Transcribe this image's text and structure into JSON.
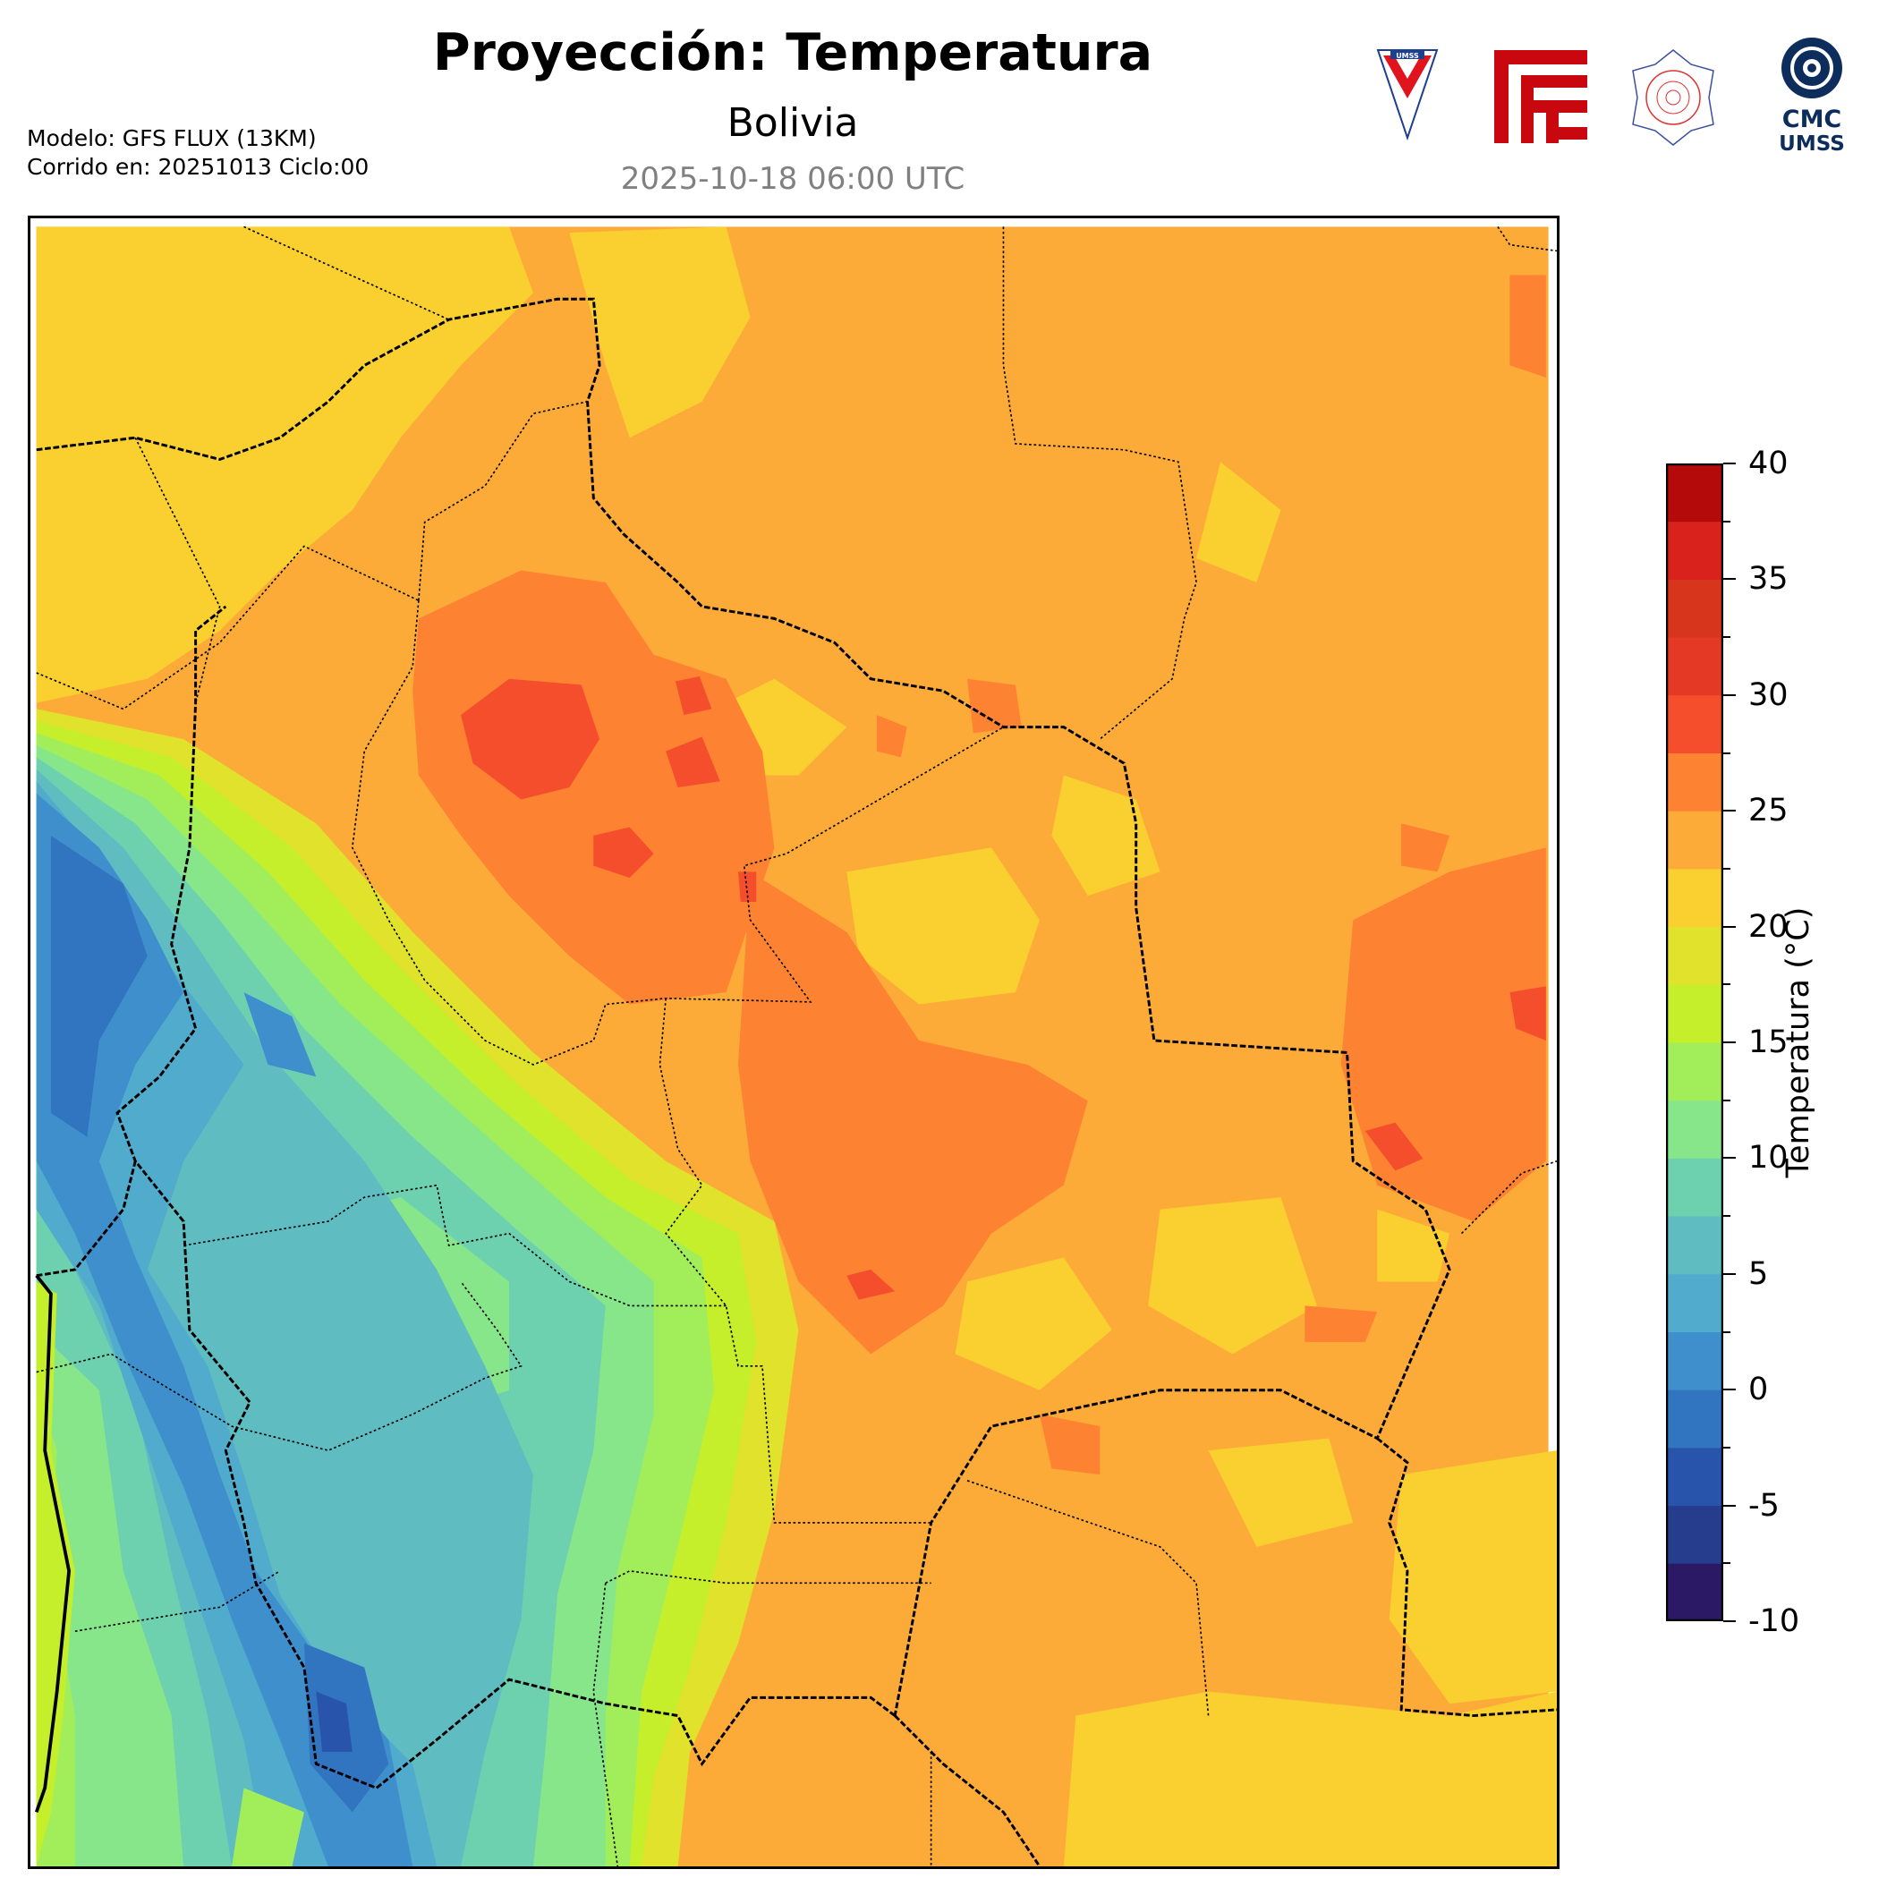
{
  "header": {
    "title": "Proyección: Temperatura",
    "subtitle": "Bolivia",
    "valid_time": "2025-10-18 06:00 UTC",
    "model": "Modelo: GFS FLUX (13KM)",
    "run": "Corrido en: 20251013 Ciclo:00"
  },
  "logos": {
    "umss": "UMSS",
    "cmc_line1": "CMC",
    "cmc_line2": "UMSS"
  },
  "colorbar": {
    "label": "Temperatura (°C)",
    "min": -10,
    "max": 40,
    "step": 2.5,
    "tick_labels": [
      "40",
      "35",
      "30",
      "25",
      "20",
      "15",
      "10",
      "5",
      "0",
      "-5",
      "-10"
    ],
    "colors": [
      "#2b1966",
      "#263c8c",
      "#2855ab",
      "#3174bf",
      "#3e8fcc",
      "#50abcc",
      "#5fbcc1",
      "#6dd1b0",
      "#88e68a",
      "#a2ee5a",
      "#c5ef2b",
      "#e0e22c",
      "#f9d030",
      "#fdab38",
      "#fd8232",
      "#f44e2c",
      "#e43a25",
      "#d8361c",
      "#d9221c",
      "#b50a0a"
    ]
  }
}
